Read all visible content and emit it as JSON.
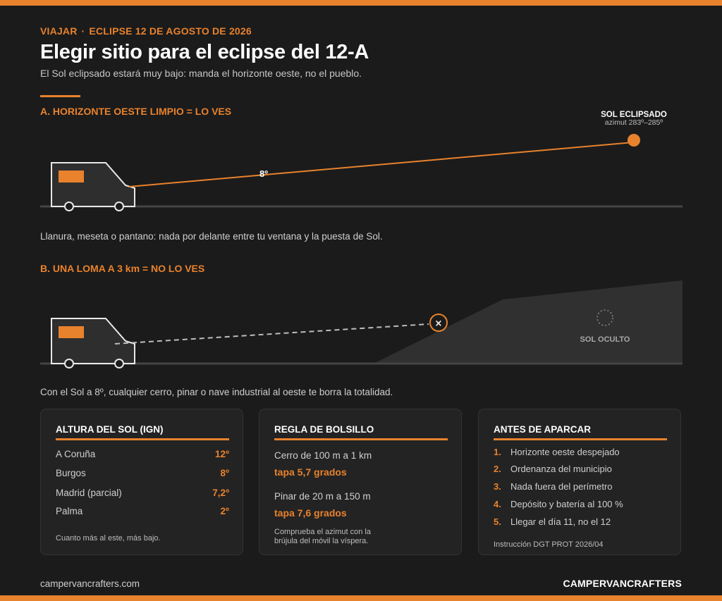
{
  "header": {
    "kicker_left": "VIAJAR",
    "kicker_sep": "·",
    "kicker_right": "ECLIPSE 12 DE AGOSTO DE 2026",
    "title": "Elegir sitio para el eclipse del 12-A",
    "subtitle": "El Sol eclipsado estará muy bajo: manda el horizonte oeste, no el pueblo."
  },
  "section_a": {
    "heading": "A.  HORIZONTE OESTE LIMPIO = LO VES",
    "sun_label": "SOL ECLIPSADO",
    "sun_sub": "azimut 283º–285º",
    "angle_label": "8º",
    "note": "Llanura, meseta o pantano: nada por delante entre tu ventana y la puesta de Sol."
  },
  "section_b": {
    "heading": "B.  UNA LOMA A 3 km = NO LO VES",
    "hidden_label": "SOL OCULTO",
    "block_mark": "×",
    "note": "Con el Sol a 8º, cualquier cerro, pinar o nave industrial al oeste te borra la totalidad."
  },
  "card_altura": {
    "title": "ALTURA DEL SOL (IGN)",
    "rows": [
      {
        "city": "A Coruña",
        "value": "12º"
      },
      {
        "city": "Burgos",
        "value": "8º"
      },
      {
        "city": "Madrid (parcial)",
        "value": "7,2º"
      },
      {
        "city": "Palma",
        "value": "2º"
      }
    ],
    "footnote": "Cuanto más al este, más bajo."
  },
  "card_regla": {
    "title": "REGLA DE BOLSILLO",
    "rule1_text": "Cerro de 100 m a 1 km",
    "rule1_value": "tapa 5,7 grados",
    "rule2_text": "Pinar de 20 m a 150 m",
    "rule2_value": "tapa 7,6 grados",
    "footnote_1": "Comprueba el azimut con la",
    "footnote_2": "brújula del móvil la víspera."
  },
  "card_antes": {
    "title": "ANTES DE APARCAR",
    "items": [
      {
        "n": "1.",
        "text": "Horizonte oeste despejado"
      },
      {
        "n": "2.",
        "text": "Ordenanza del municipio"
      },
      {
        "n": "3.",
        "text": "Nada fuera del perímetro"
      },
      {
        "n": "4.",
        "text": "Depósito y batería al 100 %"
      },
      {
        "n": "5.",
        "text": "Llegar el día 11, no el 12"
      }
    ],
    "footnote": "Instrucción DGT PROT 2026/04"
  },
  "footer": {
    "site": "campervancrafters.com",
    "brand": "CAMPERVANCRAFTERS"
  },
  "colors": {
    "accent": "#e8822d",
    "background": "#1b1b1b",
    "card": "#232323"
  }
}
